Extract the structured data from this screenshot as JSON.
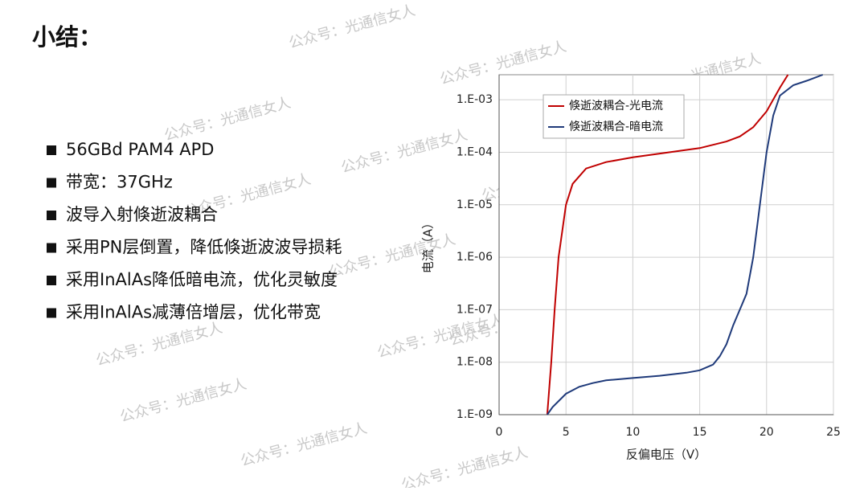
{
  "title": "小结：",
  "bullets": [
    "56GBd PAM4 APD",
    "带宽：37GHz",
    "波导入射倏逝波耦合",
    "采用PN层倒置，降低倏逝波波导损耗",
    "采用InAlAs降低暗电流，优化灵敏度",
    "采用InAlAs减薄倍增层，优化带宽"
  ],
  "watermark": "公众号：光通信女人",
  "chart_data": {
    "type": "line",
    "x_label": "反偏电压（V）",
    "y_label": "电流（A）",
    "xlim": [
      0,
      25
    ],
    "xticks": [
      0,
      5,
      10,
      15,
      20,
      25
    ],
    "ylim": [
      1e-09,
      0.003
    ],
    "log_y": true,
    "grid": true,
    "legend": "top-left",
    "yticks": [
      {
        "value": 1e-09,
        "label": "1.E-09"
      },
      {
        "value": 1e-08,
        "label": "1.E-08"
      },
      {
        "value": 1e-07,
        "label": "1.E-07"
      },
      {
        "value": 1e-06,
        "label": "1.E-06"
      },
      {
        "value": 1e-05,
        "label": "1.E-05"
      },
      {
        "value": 0.0001,
        "label": "1.E-04"
      },
      {
        "value": 0.001,
        "label": "1.E-03"
      }
    ],
    "series": [
      {
        "name": "倏逝波耦合-光电流",
        "color": "#c00000",
        "x": [
          3.6,
          3.9,
          4.15,
          4.45,
          5.0,
          5.5,
          6.5,
          8,
          10,
          15,
          17,
          18,
          19,
          20,
          21,
          21.6
        ],
        "values": [
          1e-09,
          1e-08,
          1e-07,
          1e-06,
          1e-05,
          2.5e-05,
          4.9e-05,
          6.5e-05,
          8e-05,
          0.00012,
          0.00016,
          0.0002,
          0.0003,
          0.0006,
          0.0017,
          0.003
        ]
      },
      {
        "name": "倏逝波耦合-暗电流",
        "color": "#1f3a7a",
        "x": [
          3.6,
          4,
          5,
          6,
          7,
          8,
          10,
          12,
          14,
          15,
          16,
          16.5,
          17,
          17.5,
          18,
          18.5,
          19,
          19.5,
          20,
          20.5,
          21,
          22,
          23,
          24.2
        ],
        "values": [
          1e-09,
          1.4e-09,
          2.5e-09,
          3.4e-09,
          4e-09,
          4.5e-09,
          5e-09,
          5.5e-09,
          6.3e-09,
          7e-09,
          9e-09,
          1.3e-08,
          2.2e-08,
          5e-08,
          1e-07,
          2e-07,
          1e-06,
          1e-05,
          0.0001,
          0.0005,
          0.0012,
          0.0019,
          0.0023,
          0.003
        ]
      }
    ]
  }
}
